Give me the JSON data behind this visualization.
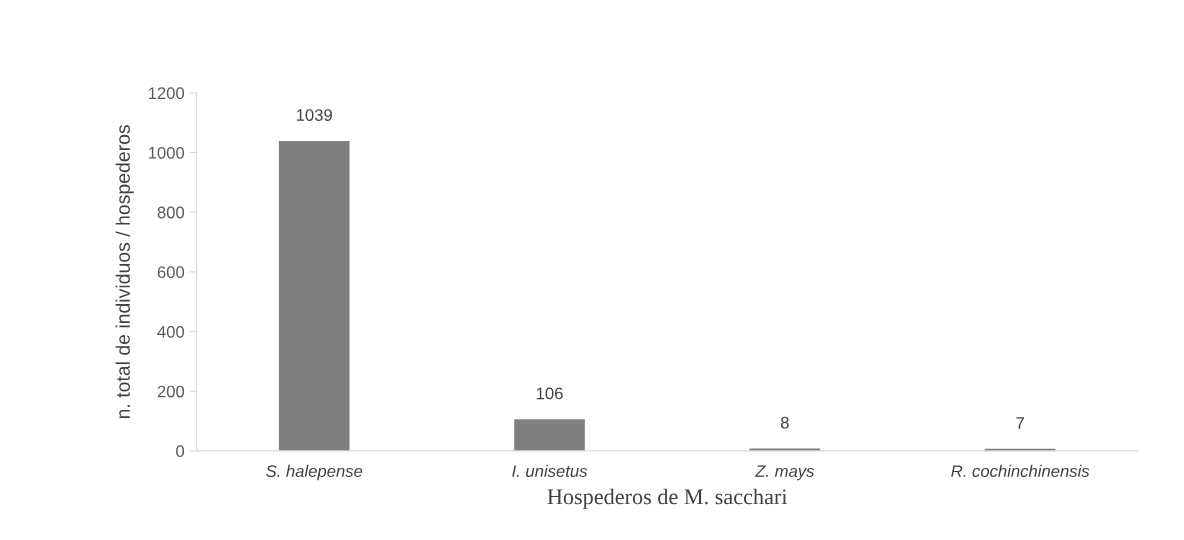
{
  "chart_data": {
    "type": "bar",
    "xlabel": "Hospederos de M. sacchari",
    "ylabel": "n. total de individuos / hospederos",
    "categories": [
      "S. halepense",
      "I. unisetus",
      "Z. mays",
      "R. cochinchinensis"
    ],
    "values": [
      1039,
      106,
      8,
      7
    ],
    "color": "#7f7f7f",
    "ylim": [
      0,
      1200
    ],
    "yticks": [
      0,
      200,
      400,
      600,
      800,
      1000,
      1200
    ],
    "grid": false,
    "legend": false,
    "data_labels": true
  }
}
